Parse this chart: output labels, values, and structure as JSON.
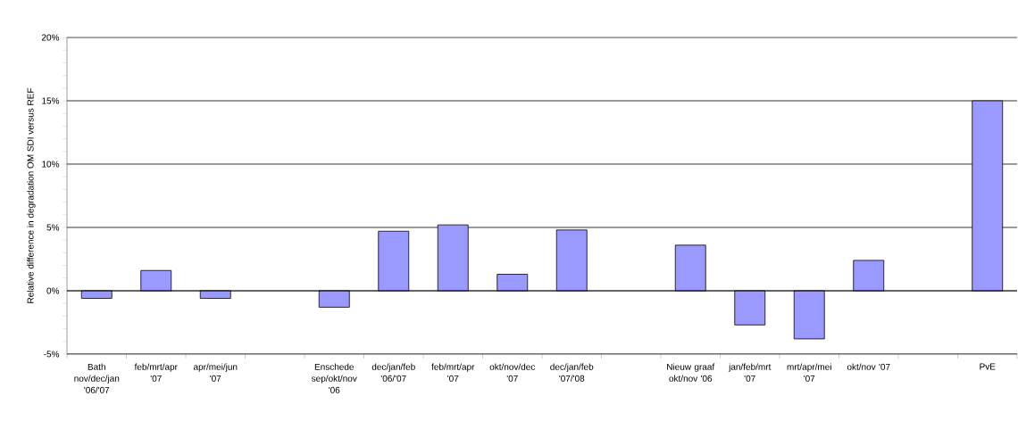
{
  "chart_data": {
    "type": "bar",
    "ylabel": "Relative difference in degradation OM  SDI versus REF",
    "categories": [
      "Bath nov/dec/jan '06/'07",
      "feb/mrt/apr '07",
      "apr/mei/jun '07",
      null,
      "Enschede sep/okt/nov '06",
      "dec/jan/feb '06/'07",
      "feb/mrt/apr '07",
      "okt/nov/dec '07",
      "dec/jan/feb '07/'08",
      null,
      "Nieuw graaf okt/nov '06",
      "jan/feb/mrt '07",
      "mrt/apr/mei '07",
      "okt/nov '07",
      null,
      "PvE"
    ],
    "values": [
      -0.6,
      1.6,
      -0.6,
      null,
      -1.3,
      4.7,
      5.2,
      1.3,
      4.8,
      null,
      3.6,
      -2.7,
      -3.8,
      2.4,
      null,
      15.0
    ],
    "color": "#9999ff",
    "ylim": [
      -5,
      20
    ],
    "yticks": [
      {
        "value": -5,
        "label": "-5%"
      },
      {
        "value": 0,
        "label": "0%"
      },
      {
        "value": 5,
        "label": "5%"
      },
      {
        "value": 10,
        "label": "10%"
      },
      {
        "value": 15,
        "label": "15%"
      },
      {
        "value": 20,
        "label": "20%"
      }
    ],
    "grid": "y"
  }
}
